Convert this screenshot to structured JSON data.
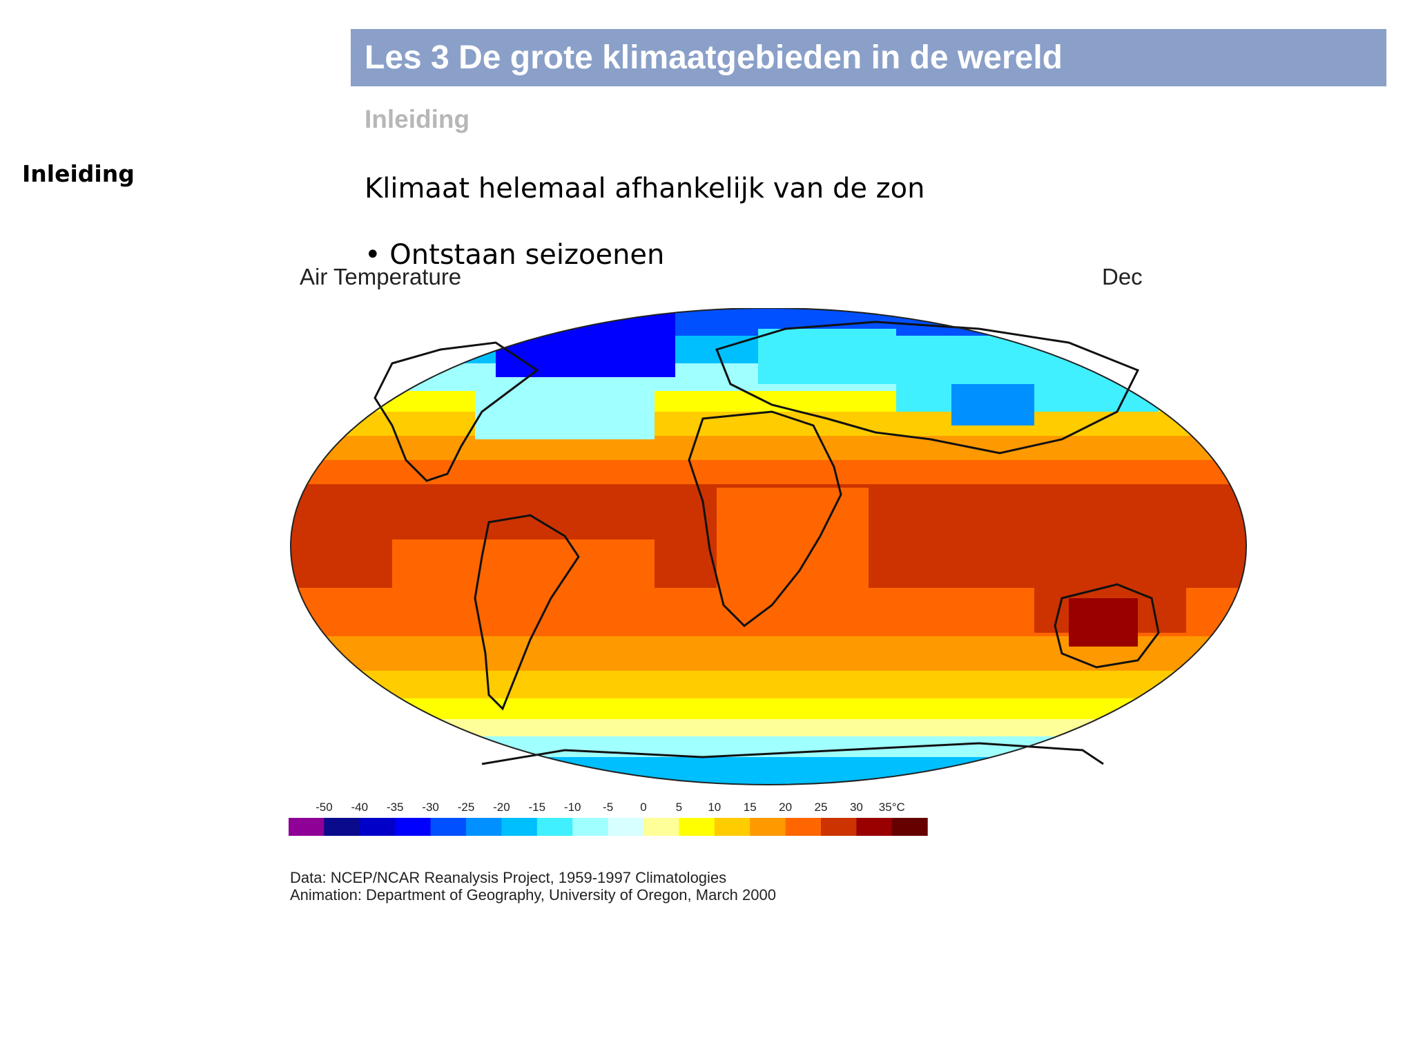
{
  "slide": {
    "title": "Les 3 De grote klimaatgebieden in de wereld",
    "subheading": "Inleiding",
    "side_label": "Inleiding",
    "body_text": "Klimaat helemaal afhankelijk van de zon",
    "bullet": "• Ontstaan seizoenen"
  },
  "map": {
    "caption_left": "Air Temperature",
    "caption_right": "Dec",
    "credit_line_1": "Data:  NCEP/NCAR Reanalysis Project, 1959-1997 Climatologies",
    "credit_line_2": "Animation:  Department of Geography, University of Oregon, March 2000",
    "legend": {
      "ticks": [
        "-50",
        "-40",
        "-35",
        "-30",
        "-25",
        "-20",
        "-15",
        "-10",
        "-5",
        "0",
        "5",
        "10",
        "15",
        "20",
        "25",
        "30",
        "35°C"
      ],
      "colors": [
        "#8e0096",
        "#0a0a8c",
        "#0000c8",
        "#0000ff",
        "#0050ff",
        "#0090ff",
        "#00bfff",
        "#40f0ff",
        "#a0ffff",
        "#d8ffff",
        "#ffff99",
        "#ffff00",
        "#ffcc00",
        "#ff9900",
        "#ff6600",
        "#cc3300",
        "#990000",
        "#660000"
      ]
    }
  }
}
